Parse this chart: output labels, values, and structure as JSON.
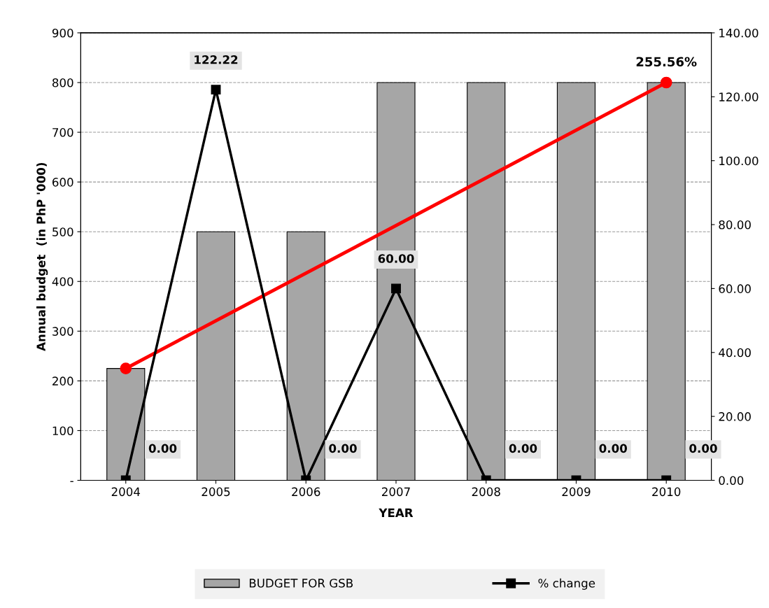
{
  "chart_data": {
    "type": "bar",
    "xlabel": "YEAR",
    "ylabel": "Annual budget  (in PhP '000)",
    "categories": [
      "2004",
      "2005",
      "2006",
      "2007",
      "2008",
      "2009",
      "2010"
    ],
    "series": [
      {
        "name": "BUDGET FOR GSB",
        "color": "#a6a6a6",
        "values": [
          225,
          500,
          500,
          800,
          800,
          800,
          800
        ]
      },
      {
        "name": "% change",
        "type": "line",
        "axis": "y2",
        "color": "#000000",
        "marker": "square",
        "values": [
          0,
          122.22,
          0,
          60,
          0,
          0,
          0
        ],
        "value_labels": [
          "0.00",
          "122.22",
          "0.00",
          "60.00",
          "0.00",
          "0.00",
          "0.00"
        ]
      },
      {
        "type": "line",
        "color": "#ff0000",
        "marker": "circle",
        "values": [
          225,
          null,
          null,
          null,
          null,
          null,
          800
        ]
      }
    ],
    "annotations": [
      {
        "text": "255.56%",
        "x": "2010",
        "y": 800
      }
    ],
    "ylim": [
      0,
      900
    ],
    "yticks": [
      {
        "value": 0,
        "label": "-"
      },
      100,
      200,
      300,
      400,
      500,
      600,
      700,
      800,
      900
    ],
    "y2lim": [
      0,
      140
    ],
    "y2ticks": [
      {
        "value": 0,
        "label": "0.00"
      },
      {
        "value": 20,
        "label": "20.00"
      },
      {
        "value": 40,
        "label": "40.00"
      },
      {
        "value": 60,
        "label": "60.00"
      },
      {
        "value": 80,
        "label": "80.00"
      },
      {
        "value": 100,
        "label": "100.00"
      },
      {
        "value": 120,
        "label": "120.00"
      },
      {
        "value": 140,
        "label": "140.00"
      }
    ],
    "grid": "y",
    "legend": "bottom"
  }
}
